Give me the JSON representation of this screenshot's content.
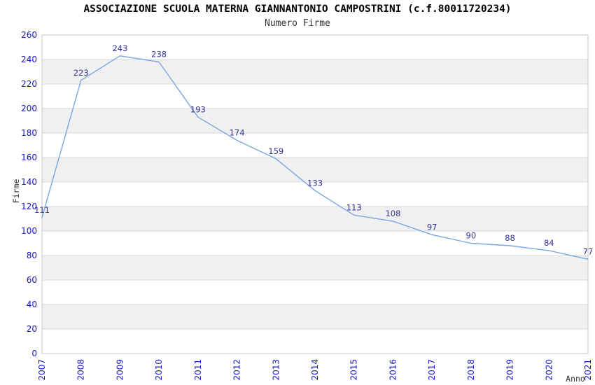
{
  "header": {
    "title": "ASSOCIAZIONE SCUOLA MATERNA GIANNANTONIO CAMPOSTRINI (c.f.80011720234)",
    "subtitle": "Numero Firme"
  },
  "chart_data": {
    "type": "line",
    "title": "ASSOCIAZIONE SCUOLA MATERNA GIANNANTONIO CAMPOSTRINI (c.f.80011720234)",
    "subtitle": "Numero Firme",
    "xlabel": "Anno",
    "ylabel": "Firme",
    "categories": [
      "2007",
      "2008",
      "2009",
      "2010",
      "2011",
      "2012",
      "2013",
      "2014",
      "2015",
      "2016",
      "2017",
      "2018",
      "2019",
      "2020",
      "2021"
    ],
    "series": [
      {
        "name": "Numero Firme",
        "values": [
          111,
          223,
          243,
          238,
          193,
          174,
          159,
          133,
          113,
          108,
          97,
          90,
          88,
          84,
          77
        ]
      }
    ],
    "ylim": [
      0,
      260
    ],
    "ytick_step": 20,
    "grid": true,
    "banded_background": true,
    "legend_position": "none",
    "colors": {
      "line": "#79a6e0",
      "data_label": "#333399",
      "tick_label": "#1414cc",
      "axis_title": "#333333",
      "band_fill": "#f0f0f0",
      "gridline": "#d9d9d9",
      "plot_border": "#c6c6c6",
      "background": "#ffffff"
    }
  }
}
